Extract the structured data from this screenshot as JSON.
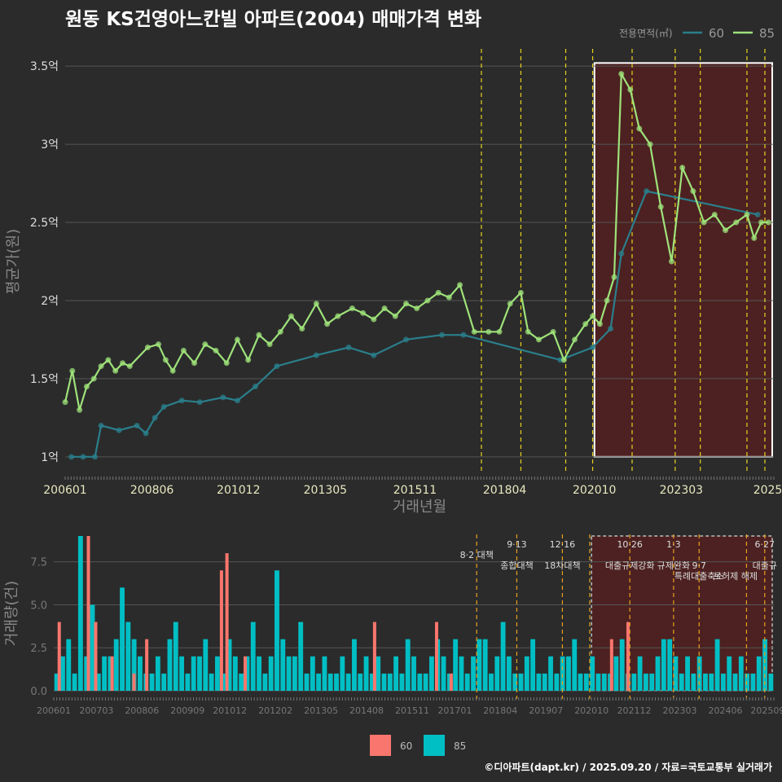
{
  "title": "원동 KS건영아느칸빌 아파트(2004) 매매가격 변화",
  "footer": "©디아파트(dapt.kr) / 2025.09.20 / 자료=국토교통부 실거래가",
  "colors": {
    "background": "#2b2b2b",
    "series60_line": "#2a7f8c",
    "series85_line": "#9ee27a",
    "series60_bar": "#f8766d",
    "series85_bar": "#00bfc4",
    "highlight_fill": "#5a1f1f",
    "policy_line": "#e8d21f",
    "policy_line_bottom": "#e8a01f"
  },
  "chart_data": [
    {
      "type": "line",
      "title": "원동 KS건영아느칸빌 아파트(2004) 매매가격 변화",
      "xlabel": "거래년월",
      "ylabel": "평균가(원)",
      "ylim": [
        0.9,
        3.6
      ],
      "xlim": [
        2006.0,
        2025.75
      ],
      "y_ticks": [
        1.0,
        1.5,
        2.0,
        2.5,
        3.0,
        3.5
      ],
      "y_tick_labels": [
        "1억",
        "1.5억",
        "2억",
        "2.5억",
        "3억",
        "3.5억"
      ],
      "x_ticks": [
        2006.0,
        2008.42,
        2010.83,
        2013.25,
        2015.75,
        2018.25,
        2020.75,
        2023.17,
        2025.58
      ],
      "x_tick_labels": [
        "200601",
        "200806",
        "201012",
        "201305",
        "201511",
        "201804",
        "202010",
        "202303",
        "2025"
      ],
      "legend_title": "전용면적(㎡)",
      "legend_position": "top-right",
      "highlight_range": [
        2020.75,
        2025.75
      ],
      "policy_dates": [
        2017.6,
        2018.7,
        2019.95,
        2020.7,
        2021.8,
        2023.0,
        2023.7,
        2025.0,
        2025.5
      ],
      "series": [
        {
          "name": "60",
          "x": [
            2006.17,
            2006.5,
            2006.83,
            2007.0,
            2007.5,
            2008.0,
            2008.25,
            2008.5,
            2008.75,
            2009.25,
            2009.75,
            2010.4,
            2010.8,
            2011.3,
            2011.9,
            2013.0,
            2013.9,
            2014.6,
            2015.5,
            2016.5,
            2017.1,
            2019.8,
            2020.7,
            2021.2,
            2021.5,
            2022.2,
            2025.3
          ],
          "y": [
            1.0,
            1.0,
            1.0,
            1.2,
            1.17,
            1.2,
            1.15,
            1.25,
            1.32,
            1.36,
            1.35,
            1.38,
            1.36,
            1.45,
            1.58,
            1.65,
            1.7,
            1.65,
            1.75,
            1.78,
            1.78,
            1.62,
            1.7,
            1.82,
            2.3,
            2.7,
            2.55
          ]
        },
        {
          "name": "85",
          "x": [
            2006.0,
            2006.2,
            2006.4,
            2006.6,
            2006.8,
            2007.0,
            2007.2,
            2007.4,
            2007.6,
            2007.8,
            2008.3,
            2008.6,
            2008.8,
            2009.0,
            2009.3,
            2009.6,
            2009.9,
            2010.2,
            2010.5,
            2010.8,
            2011.1,
            2011.4,
            2011.7,
            2012.0,
            2012.3,
            2012.6,
            2013.0,
            2013.3,
            2013.6,
            2014.0,
            2014.3,
            2014.6,
            2014.9,
            2015.2,
            2015.5,
            2015.8,
            2016.1,
            2016.4,
            2016.7,
            2017.0,
            2017.4,
            2017.8,
            2018.1,
            2018.4,
            2018.7,
            2018.9,
            2019.2,
            2019.6,
            2019.9,
            2020.2,
            2020.5,
            2020.7,
            2020.9,
            2021.1,
            2021.3,
            2021.5,
            2021.75,
            2022.0,
            2022.3,
            2022.6,
            2022.9,
            2023.2,
            2023.5,
            2023.8,
            2024.1,
            2024.4,
            2024.7,
            2025.0,
            2025.2,
            2025.4,
            2025.6
          ],
          "y": [
            1.35,
            1.55,
            1.3,
            1.45,
            1.5,
            1.58,
            1.62,
            1.55,
            1.6,
            1.58,
            1.7,
            1.72,
            1.62,
            1.55,
            1.68,
            1.6,
            1.72,
            1.68,
            1.6,
            1.75,
            1.62,
            1.78,
            1.72,
            1.8,
            1.9,
            1.82,
            1.98,
            1.85,
            1.9,
            1.95,
            1.92,
            1.88,
            1.95,
            1.9,
            1.98,
            1.95,
            2.0,
            2.05,
            2.02,
            2.1,
            1.8,
            1.8,
            1.8,
            1.98,
            2.05,
            1.8,
            1.75,
            1.8,
            1.62,
            1.75,
            1.85,
            1.9,
            1.85,
            2.0,
            2.15,
            3.45,
            3.35,
            3.1,
            3.0,
            2.6,
            2.25,
            2.85,
            2.7,
            2.5,
            2.55,
            2.45,
            2.5,
            2.55,
            2.4,
            2.5,
            2.5
          ]
        }
      ]
    },
    {
      "type": "bar",
      "xlabel": "",
      "ylabel": "거래량(건)",
      "ylim": [
        0,
        9.0
      ],
      "y_ticks": [
        0.0,
        2.5,
        5.0,
        7.5
      ],
      "y_tick_labels": [
        "0.0",
        "2.5",
        "5.0",
        "7.5"
      ],
      "x_ticks": [
        2006.0,
        2007.17,
        2008.42,
        2009.67,
        2010.83,
        2012.08,
        2013.33,
        2014.58,
        2015.83,
        2017.0,
        2018.25,
        2019.5,
        2020.75,
        2021.92,
        2023.17,
        2024.42,
        2025.58
      ],
      "x_tick_labels": [
        "200601",
        "200703",
        "200806",
        "200909",
        "201012",
        "201202",
        "201305",
        "201408",
        "201511",
        "201701",
        "201804",
        "201907",
        "202010",
        "202112",
        "202303",
        "202406",
        "202509"
      ],
      "legend": [
        "60",
        "85"
      ],
      "legend_position": "bottom",
      "highlight_range": [
        2020.75,
        2025.75
      ],
      "annotations": [
        {
          "x": 2017.6,
          "label": "8·2 대책",
          "row": 1
        },
        {
          "x": 2018.7,
          "label": "9·13",
          "row": 0
        },
        {
          "x": 2018.7,
          "label": "종합대책",
          "row": 2
        },
        {
          "x": 2019.95,
          "label": "12·16",
          "row": 0
        },
        {
          "x": 2019.95,
          "label": "18차대책",
          "row": 2
        },
        {
          "x": 2021.8,
          "label": "10·26",
          "row": 0
        },
        {
          "x": 2021.8,
          "label": "대출규제강화",
          "row": 2
        },
        {
          "x": 2023.0,
          "label": "1·3",
          "row": 0
        },
        {
          "x": 2023.0,
          "label": "규제완화",
          "row": 2
        },
        {
          "x": 2023.7,
          "label": "9·7",
          "row": 2
        },
        {
          "x": 2023.7,
          "label": "특례대출축소",
          "row": 3
        },
        {
          "x": 2024.7,
          "label": "토허제 해제",
          "row": 3
        },
        {
          "x": 2025.5,
          "label": "6·27",
          "row": 0
        },
        {
          "x": 2025.5,
          "label": "대출규",
          "row": 2
        }
      ],
      "series_60_spikes": [
        {
          "x": 2006.15,
          "v": 4.0
        },
        {
          "x": 2006.95,
          "v": 9.0
        },
        {
          "x": 2007.15,
          "v": 4.0
        },
        {
          "x": 2007.6,
          "v": 2.0
        },
        {
          "x": 2008.2,
          "v": 1.0
        },
        {
          "x": 2008.55,
          "v": 3.0
        },
        {
          "x": 2010.6,
          "v": 7.0
        },
        {
          "x": 2010.75,
          "v": 8.0
        },
        {
          "x": 2011.25,
          "v": 2.0
        },
        {
          "x": 2014.8,
          "v": 4.0
        },
        {
          "x": 2016.5,
          "v": 4.0
        },
        {
          "x": 2016.9,
          "v": 1.0
        },
        {
          "x": 2021.3,
          "v": 3.0
        },
        {
          "x": 2021.75,
          "v": 4.0
        }
      ],
      "series_85_values": [
        1,
        2,
        3,
        1,
        9,
        2,
        5,
        1,
        2,
        2,
        3,
        6,
        4,
        3,
        2,
        1,
        1,
        2,
        1,
        3,
        4,
        2,
        1,
        2,
        2,
        3,
        1,
        2,
        1,
        3,
        2,
        1,
        2,
        4,
        2,
        1,
        2,
        7,
        3,
        2,
        2,
        4,
        1,
        2,
        1,
        2,
        1,
        1,
        2,
        1,
        3,
        1,
        2,
        1,
        2,
        1,
        1,
        2,
        1,
        3,
        2,
        1,
        1,
        2,
        3,
        2,
        1,
        3,
        2,
        1,
        2,
        3,
        3,
        1,
        2,
        4,
        2,
        1,
        1,
        2,
        3,
        1,
        1,
        2,
        1,
        2,
        2,
        3,
        1,
        1,
        2,
        1,
        1,
        1,
        2,
        3,
        1,
        1,
        2,
        1,
        1,
        2,
        3,
        3,
        2,
        1,
        2,
        1,
        2,
        1,
        1,
        3,
        1,
        2,
        1,
        2,
        1,
        1,
        2,
        3,
        1
      ]
    }
  ]
}
